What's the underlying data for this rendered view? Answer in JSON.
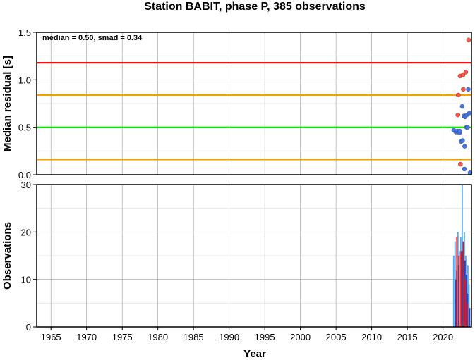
{
  "chart_data": [
    {
      "type": "scatter",
      "title": "Station BABIT, phase P, 385 observations",
      "xlabel": "",
      "ylabel": "Median residual [s]",
      "xlim": [
        1963,
        2024
      ],
      "ylim": [
        0,
        1.5
      ],
      "yticks": [
        "0.0",
        "0.5",
        "1.0",
        "1.5"
      ],
      "annotation": "median = 0.50, smad = 0.34",
      "reference_lines": [
        {
          "y": 1.18,
          "color": "#ee1111"
        },
        {
          "y": 0.84,
          "color": "#f5a000"
        },
        {
          "y": 0.5,
          "color": "#00ee00"
        },
        {
          "y": 0.16,
          "color": "#f5a000"
        }
      ],
      "outlier_color": "#ff5544",
      "normal_color": "#4477ee",
      "points": [
        {
          "x": 2021.5,
          "y": 0.47,
          "outlier": false
        },
        {
          "x": 2021.8,
          "y": 0.45,
          "outlier": false
        },
        {
          "x": 2022.0,
          "y": 0.46,
          "outlier": false
        },
        {
          "x": 2022.1,
          "y": 0.63,
          "outlier": true
        },
        {
          "x": 2022.15,
          "y": 0.84,
          "outlier": true
        },
        {
          "x": 2022.3,
          "y": 0.44,
          "outlier": false
        },
        {
          "x": 2022.35,
          "y": 0.46,
          "outlier": false
        },
        {
          "x": 2022.4,
          "y": 1.04,
          "outlier": true
        },
        {
          "x": 2022.45,
          "y": 0.11,
          "outlier": true
        },
        {
          "x": 2022.55,
          "y": 0.35,
          "outlier": false
        },
        {
          "x": 2022.7,
          "y": 0.72,
          "outlier": false
        },
        {
          "x": 2022.75,
          "y": 0.36,
          "outlier": false
        },
        {
          "x": 2022.8,
          "y": 1.05,
          "outlier": true
        },
        {
          "x": 2022.85,
          "y": 0.9,
          "outlier": true
        },
        {
          "x": 2022.95,
          "y": 0.62,
          "outlier": false
        },
        {
          "x": 2023.0,
          "y": 0.06,
          "outlier": false
        },
        {
          "x": 2023.05,
          "y": 0.3,
          "outlier": false
        },
        {
          "x": 2023.1,
          "y": 0.61,
          "outlier": false
        },
        {
          "x": 2023.2,
          "y": 1.08,
          "outlier": true
        },
        {
          "x": 2023.3,
          "y": 0.5,
          "outlier": false
        },
        {
          "x": 2023.35,
          "y": 0.63,
          "outlier": false
        },
        {
          "x": 2023.45,
          "y": 0.5,
          "outlier": false
        },
        {
          "x": 2023.55,
          "y": 0.9,
          "outlier": false
        },
        {
          "x": 2023.6,
          "y": 1.42,
          "outlier": true
        },
        {
          "x": 2023.7,
          "y": 0.65,
          "outlier": false
        },
        {
          "x": 2023.8,
          "y": 0.02,
          "outlier": false
        }
      ]
    },
    {
      "type": "bar",
      "xlabel": "Year",
      "ylabel": "Observations",
      "xlim": [
        1963,
        2024
      ],
      "ylim": [
        0,
        30
      ],
      "yticks": [
        "0",
        "10",
        "20",
        "30"
      ],
      "xticks": [
        "1965",
        "1970",
        "1975",
        "1980",
        "1985",
        "1990",
        "1995",
        "2000",
        "2005",
        "2010",
        "2015",
        "2020"
      ],
      "series": [
        {
          "color": "#55aaee",
          "bars": [
            {
              "x": 2021.5,
              "v": 15
            },
            {
              "x": 2021.7,
              "v": 18
            },
            {
              "x": 2021.9,
              "v": 12
            },
            {
              "x": 2022.1,
              "v": 20
            },
            {
              "x": 2022.3,
              "v": 16
            },
            {
              "x": 2022.5,
              "v": 19
            },
            {
              "x": 2022.7,
              "v": 30
            },
            {
              "x": 2022.9,
              "v": 18
            },
            {
              "x": 2023.0,
              "v": 20
            },
            {
              "x": 2023.2,
              "v": 15
            },
            {
              "x": 2023.35,
              "v": 11
            },
            {
              "x": 2023.5,
              "v": 13
            },
            {
              "x": 2023.65,
              "v": 9
            }
          ]
        },
        {
          "color": "#2244cc",
          "bars": [
            {
              "x": 2021.8,
              "v": 10
            },
            {
              "x": 2022.2,
              "v": 13
            },
            {
              "x": 2022.6,
              "v": 12
            },
            {
              "x": 2022.8,
              "v": 16
            },
            {
              "x": 2023.1,
              "v": 14
            },
            {
              "x": 2023.3,
              "v": 11
            },
            {
              "x": 2023.45,
              "v": 7
            },
            {
              "x": 2023.75,
              "v": 4
            }
          ]
        },
        {
          "color": "#ee1111",
          "bars": [
            {
              "x": 2021.95,
              "v": 19
            },
            {
              "x": 2022.25,
              "v": 15
            },
            {
              "x": 2022.55,
              "v": 16
            },
            {
              "x": 2022.85,
              "v": 18
            },
            {
              "x": 2023.15,
              "v": 10
            },
            {
              "x": 2023.4,
              "v": 5
            }
          ]
        }
      ]
    }
  ]
}
